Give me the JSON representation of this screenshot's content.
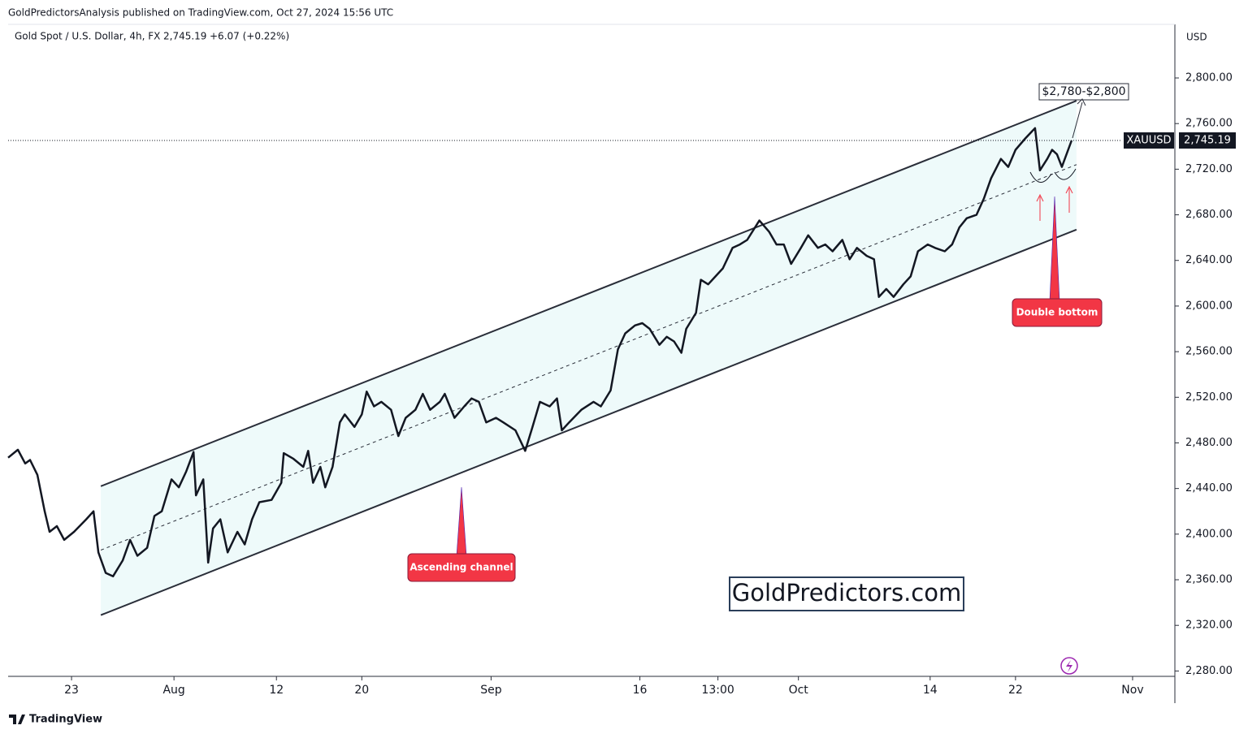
{
  "header": {
    "publisher": "GoldPredictorsAnalysis published on TradingView.com, Oct 27, 2024 15:56 UTC",
    "symbol": "Gold Spot / U.S. Dollar, 4h, FX",
    "change": "+6.07 (+0.22%)",
    "brand": "TradingView"
  },
  "chart_data": {
    "type": "line",
    "currency": "USD",
    "x": [
      0,
      4,
      7,
      9,
      12,
      15,
      17,
      20,
      23,
      27,
      32,
      35,
      37,
      40,
      43,
      47,
      50,
      53,
      57,
      60,
      63,
      67,
      70,
      73,
      76,
      77,
      80,
      82,
      84,
      87,
      90,
      94,
      97,
      100,
      103,
      108,
      112,
      113,
      117,
      121,
      123,
      125,
      128,
      130,
      133,
      136,
      138,
      142,
      145,
      147,
      150,
      153,
      157,
      160,
      163,
      167,
      170,
      173,
      177,
      179,
      183,
      187,
      190,
      193,
      196,
      200,
      203,
      208,
      212,
      215,
      218,
      222,
      225,
      227,
      230,
      235,
      240,
      243,
      247,
      250,
      253,
      257,
      260,
      263,
      267,
      270,
      273,
      276,
      278,
      282,
      284,
      287,
      290,
      293,
      297,
      300,
      303,
      308,
      312,
      315,
      318,
      321,
      325,
      328,
      332,
      335,
      338,
      342,
      345,
      348,
      352,
      355,
      357,
      360,
      363,
      367,
      370,
      373,
      377,
      380,
      384,
      387,
      390,
      393,
      397,
      400,
      403,
      407,
      410,
      413,
      417,
      421,
      423,
      426,
      428,
      430,
      432,
      436
    ],
    "series": [
      {
        "name": "XAUUSD",
        "color": "#131722",
        "values": [
          2467,
          2474,
          2462,
          2465,
          2452,
          2420,
          2402,
          2407,
          2395,
          2402,
          2413,
          2420,
          2384,
          2366,
          2363,
          2377,
          2395,
          2381,
          2388,
          2416,
          2420,
          2448,
          2441,
          2455,
          2472,
          2434,
          2448,
          2375,
          2405,
          2413,
          2384,
          2402,
          2391,
          2413,
          2428,
          2430,
          2445,
          2471,
          2466,
          2459,
          2473,
          2445,
          2459,
          2441,
          2459,
          2498,
          2505,
          2494,
          2505,
          2525,
          2512,
          2516,
          2509,
          2486,
          2502,
          2509,
          2523,
          2509,
          2516,
          2523,
          2502,
          2512,
          2519,
          2516,
          2498,
          2502,
          2498,
          2491,
          2473,
          2494,
          2516,
          2512,
          2519,
          2491,
          2498,
          2509,
          2516,
          2512,
          2526,
          2562,
          2576,
          2583,
          2585,
          2580,
          2566,
          2573,
          2569,
          2559,
          2580,
          2594,
          2623,
          2619,
          2626,
          2633,
          2651,
          2654,
          2658,
          2675,
          2665,
          2654,
          2654,
          2637,
          2651,
          2662,
          2651,
          2654,
          2648,
          2658,
          2641,
          2651,
          2644,
          2641,
          2608,
          2615,
          2608,
          2619,
          2626,
          2648,
          2654,
          2651,
          2648,
          2654,
          2669,
          2677,
          2680,
          2694,
          2712,
          2729,
          2722,
          2737,
          2747,
          2756,
          2719,
          2729,
          2737,
          2733,
          2722,
          2745.19
        ]
      }
    ],
    "last_price": {
      "value": 2745.19,
      "label": "2,745.19"
    },
    "channel": {
      "fill_color": "#eefafa",
      "line_color": "#2a2e39",
      "upper": {
        "x": [
          38,
          438
        ],
        "y": [
          2442,
          2780
        ]
      },
      "middle": {
        "x": [
          38,
          438
        ],
        "y": [
          2386,
          2724
        ]
      },
      "lower": {
        "x": [
          38,
          438
        ],
        "y": [
          2329,
          2667
        ]
      }
    },
    "xlim": [
      0,
      478
    ],
    "ylim": [
      2276,
      2847
    ],
    "xticks": [
      {
        "value": 26,
        "label": "23"
      },
      {
        "value": 68,
        "label": "Aug"
      },
      {
        "value": 110,
        "label": "12"
      },
      {
        "value": 145,
        "label": "20"
      },
      {
        "value": 198,
        "label": "Sep"
      },
      {
        "value": 259,
        "label": "16"
      },
      {
        "value": 291,
        "label": "13:00"
      },
      {
        "value": 324,
        "label": "Oct"
      },
      {
        "value": 378,
        "label": "14"
      },
      {
        "value": 413,
        "label": "22"
      },
      {
        "value": 461,
        "label": "Nov"
      }
    ],
    "yticks": [
      {
        "value": 2280,
        "label": "2,280.00"
      },
      {
        "value": 2320,
        "label": "2,320.00"
      },
      {
        "value": 2360,
        "label": "2,360.00"
      },
      {
        "value": 2400,
        "label": "2,400.00"
      },
      {
        "value": 2440,
        "label": "2,440.00"
      },
      {
        "value": 2480,
        "label": "2,480.00"
      },
      {
        "value": 2520,
        "label": "2,520.00"
      },
      {
        "value": 2560,
        "label": "2,560.00"
      },
      {
        "value": 2600,
        "label": "2,600.00"
      },
      {
        "value": 2640,
        "label": "2,640.00"
      },
      {
        "value": 2680,
        "label": "2,680.00"
      },
      {
        "value": 2720,
        "label": "2,720.00"
      },
      {
        "value": 2760,
        "label": "2,760.00"
      },
      {
        "value": 2800,
        "label": "2,800.00"
      }
    ],
    "annotations": {
      "target": "$2,780-$2,800",
      "channel": "Ascending channel",
      "pattern": "Double bottom",
      "watermark": "GoldPredictors.com"
    }
  }
}
